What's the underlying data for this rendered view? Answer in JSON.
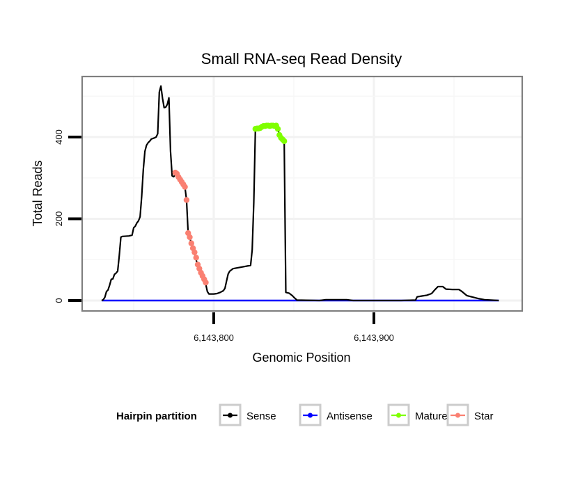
{
  "chart_data": {
    "type": "line",
    "title": "Small RNA-seq Read Density",
    "xlabel": "Genomic Position",
    "ylabel": "Total Reads",
    "xlim": [
      6143717,
      6143980
    ],
    "ylim": [
      -20,
      535
    ],
    "x_ticks": [
      {
        "value": 6143800,
        "label": "6,143,800"
      },
      {
        "value": 6143900,
        "label": "6,143,900"
      }
    ],
    "y_ticks": [
      {
        "value": 0,
        "label": "0"
      },
      {
        "value": 200,
        "label": "200"
      },
      {
        "value": 400,
        "label": "400"
      }
    ],
    "grid": true,
    "legend": {
      "title": "Hairpin partition",
      "placement": "bottom",
      "entries": [
        {
          "name": "Sense",
          "color": "#000000"
        },
        {
          "name": "Antisense",
          "color": "#0000ff"
        },
        {
          "name": "Mature",
          "color": "#7fff00"
        },
        {
          "name": "Star",
          "color": "#fa8072"
        }
      ]
    },
    "series": [
      {
        "name": "Sense",
        "color": "#000000",
        "style": "line",
        "points": [
          [
            6143730,
            0
          ],
          [
            6143731,
            2
          ],
          [
            6143732,
            8
          ],
          [
            6143733,
            22
          ],
          [
            6143734,
            26
          ],
          [
            6143735,
            38
          ],
          [
            6143736,
            52
          ],
          [
            6143737,
            53
          ],
          [
            6143738,
            64
          ],
          [
            6143739,
            67
          ],
          [
            6143740,
            72
          ],
          [
            6143741,
            110
          ],
          [
            6143742,
            155
          ],
          [
            6143743,
            157
          ],
          [
            6143747,
            158
          ],
          [
            6143749,
            160
          ],
          [
            6143750,
            178
          ],
          [
            6143751,
            182
          ],
          [
            6143752,
            190
          ],
          [
            6143753,
            195
          ],
          [
            6143754,
            205
          ],
          [
            6143755,
            255
          ],
          [
            6143756,
            320
          ],
          [
            6143757,
            365
          ],
          [
            6143758,
            380
          ],
          [
            6143759,
            386
          ],
          [
            6143760,
            390
          ],
          [
            6143761,
            395
          ],
          [
            6143763,
            398
          ],
          [
            6143764,
            400
          ],
          [
            6143765,
            408
          ],
          [
            6143766,
            510
          ],
          [
            6143767,
            525
          ],
          [
            6143768,
            495
          ],
          [
            6143769,
            472
          ],
          [
            6143770,
            473
          ],
          [
            6143771,
            480
          ],
          [
            6143772,
            496
          ],
          [
            6143773,
            365
          ],
          [
            6143774,
            305
          ],
          [
            6143775,
            303
          ],
          [
            6143776,
            308
          ],
          [
            6143777,
            315
          ],
          [
            6143778,
            306
          ],
          [
            6143779,
            296
          ],
          [
            6143780,
            290
          ],
          [
            6143781,
            282
          ],
          [
            6143782,
            278
          ],
          [
            6143783,
            246
          ],
          [
            6143784,
            165
          ],
          [
            6143785,
            155
          ],
          [
            6143786,
            140
          ],
          [
            6143787,
            127
          ],
          [
            6143788,
            115
          ],
          [
            6143789,
            100
          ],
          [
            6143790,
            85
          ],
          [
            6143791,
            75
          ],
          [
            6143792,
            65
          ],
          [
            6143793,
            57
          ],
          [
            6143794,
            50
          ],
          [
            6143795,
            40
          ],
          [
            6143796,
            22
          ],
          [
            6143797,
            16
          ],
          [
            6143800,
            16
          ],
          [
            6143802,
            17
          ],
          [
            6143804,
            20
          ],
          [
            6143806,
            24
          ],
          [
            6143807,
            30
          ],
          [
            6143808,
            48
          ],
          [
            6143809,
            65
          ],
          [
            6143810,
            72
          ],
          [
            6143812,
            78
          ],
          [
            6143823,
            86
          ],
          [
            6143824,
            124
          ],
          [
            6143825,
            240
          ],
          [
            6143826,
            420
          ],
          [
            6143827,
            421
          ],
          [
            6143829,
            422
          ],
          [
            6143831,
            427
          ],
          [
            6143833,
            428
          ],
          [
            6143836,
            428
          ],
          [
            6143839,
            428
          ],
          [
            6143840,
            420
          ],
          [
            6143841,
            405
          ],
          [
            6143842,
            396
          ],
          [
            6143843,
            390
          ],
          [
            6143844,
            385
          ],
          [
            6143845,
            20
          ],
          [
            6143847,
            18
          ],
          [
            6143849,
            12
          ],
          [
            6143850,
            8
          ],
          [
            6143852,
            1
          ],
          [
            6143866,
            0
          ],
          [
            6143870,
            2
          ],
          [
            6143883,
            2
          ],
          [
            6143887,
            0
          ],
          [
            6143917,
            0
          ],
          [
            6143926,
            1
          ],
          [
            6143927,
            9
          ],
          [
            6143930,
            11
          ],
          [
            6143933,
            13
          ],
          [
            6143936,
            17
          ],
          [
            6143938,
            26
          ],
          [
            6143940,
            34
          ],
          [
            6143943,
            34
          ],
          [
            6143945,
            28
          ],
          [
            6143949,
            27
          ],
          [
            6143953,
            27
          ],
          [
            6143955,
            22
          ],
          [
            6143958,
            12
          ],
          [
            6143961,
            9
          ],
          [
            6143965,
            5
          ],
          [
            6143969,
            2
          ],
          [
            6143978,
            0
          ]
        ]
      },
      {
        "name": "Antisense",
        "color": "#0000ff",
        "style": "line",
        "points": [
          [
            6143730,
            0
          ],
          [
            6143978,
            0
          ]
        ]
      },
      {
        "name": "Mature",
        "color": "#7fff00",
        "style": "points",
        "points": [
          [
            6143826,
            420
          ],
          [
            6143827,
            421
          ],
          [
            6143828,
            421
          ],
          [
            6143829,
            422
          ],
          [
            6143830,
            425
          ],
          [
            6143831,
            427
          ],
          [
            6143832,
            427
          ],
          [
            6143833,
            428
          ],
          [
            6143834,
            428
          ],
          [
            6143835,
            427
          ],
          [
            6143836,
            428
          ],
          [
            6143837,
            428
          ],
          [
            6143838,
            427
          ],
          [
            6143839,
            428
          ],
          [
            6143840,
            420
          ],
          [
            6143841,
            405
          ],
          [
            6143842,
            398
          ],
          [
            6143843,
            394
          ],
          [
            6143844,
            390
          ]
        ]
      },
      {
        "name": "Star",
        "color": "#fa8072",
        "style": "points",
        "points": [
          [
            6143776,
            313
          ],
          [
            6143777,
            310
          ],
          [
            6143778,
            302
          ],
          [
            6143779,
            296
          ],
          [
            6143780,
            290
          ],
          [
            6143781,
            284
          ],
          [
            6143782,
            278
          ],
          [
            6143783,
            246
          ],
          [
            6143784,
            165
          ],
          [
            6143785,
            155
          ],
          [
            6143786,
            140
          ],
          [
            6143787,
            128
          ],
          [
            6143788,
            118
          ],
          [
            6143789,
            105
          ],
          [
            6143790,
            88
          ],
          [
            6143791,
            78
          ],
          [
            6143792,
            68
          ],
          [
            6143793,
            60
          ],
          [
            6143794,
            52
          ],
          [
            6143795,
            44
          ]
        ]
      }
    ]
  }
}
